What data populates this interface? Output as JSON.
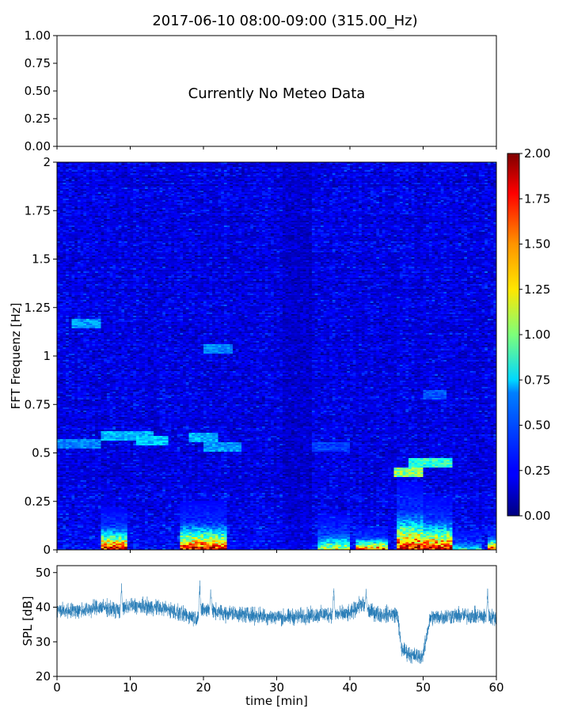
{
  "figure": {
    "title": "2017-06-10 08:00-09:00 (315.00_Hz)"
  },
  "chart_data": [
    {
      "type": "line",
      "panel": "meteo",
      "message": "Currently No Meteo Data",
      "ylim": [
        0,
        1
      ],
      "yticks": [
        "0.00",
        "0.25",
        "0.50",
        "0.75",
        "1.00"
      ],
      "xlim": [
        0,
        60
      ],
      "series": []
    },
    {
      "type": "heatmap",
      "panel": "spectrogram",
      "ylabel": "FFT Frequenz [Hz]",
      "ylim": [
        0,
        2
      ],
      "yticks": [
        0,
        0.25,
        0.5,
        0.75,
        1,
        1.25,
        1.5,
        1.75,
        2
      ],
      "ytick_labels": [
        "0",
        "0.25",
        "0.5",
        "0.75",
        "1",
        "1.25",
        "1.5",
        "1.75",
        "2"
      ],
      "xlim": [
        0,
        60
      ],
      "colormap": "jet",
      "colorbar": {
        "range": [
          0,
          2
        ],
        "ticks": [
          "0.00",
          "0.25",
          "0.50",
          "0.75",
          "1.00",
          "1.25",
          "1.50",
          "1.75",
          "2.00"
        ]
      },
      "features": [
        {
          "t_start": 0,
          "t_end": 6,
          "freq": 0.55,
          "amplitude": 0.55
        },
        {
          "t_start": 6,
          "t_end": 13,
          "freq": 0.59,
          "amplitude": 0.65
        },
        {
          "t_start": 11,
          "t_end": 15,
          "freq": 0.56,
          "amplitude": 0.7
        },
        {
          "t_start": 18,
          "t_end": 22,
          "freq": 0.58,
          "amplitude": 0.65
        },
        {
          "t_start": 20,
          "t_end": 25,
          "freq": 0.53,
          "amplitude": 0.6
        },
        {
          "t_start": 2,
          "t_end": 6,
          "freq": 1.17,
          "amplitude": 0.6
        },
        {
          "t_start": 20,
          "t_end": 24,
          "freq": 1.04,
          "amplitude": 0.55
        },
        {
          "t_start": 46,
          "t_end": 50,
          "freq": 0.4,
          "amplitude": 1.1
        },
        {
          "t_start": 48,
          "t_end": 54,
          "freq": 0.45,
          "amplitude": 0.9
        },
        {
          "t_start": 50,
          "t_end": 53,
          "freq": 0.8,
          "amplitude": 0.45
        },
        {
          "t_start": 35,
          "t_end": 40,
          "freq": 0.53,
          "amplitude": 0.4
        }
      ],
      "bursts": [
        {
          "t_start": 6.2,
          "t_end": 9.4,
          "peak": 2.0,
          "height": 0.22
        },
        {
          "t_start": 16.8,
          "t_end": 23.3,
          "peak": 2.0,
          "height": 0.25
        },
        {
          "t_start": 35.5,
          "t_end": 40.0,
          "peak": 1.3,
          "height": 0.18
        },
        {
          "t_start": 41.0,
          "t_end": 45.0,
          "peak": 1.8,
          "height": 0.12
        },
        {
          "t_start": 46.3,
          "t_end": 50.0,
          "peak": 2.0,
          "height": 0.35
        },
        {
          "t_start": 50.0,
          "t_end": 54.0,
          "peak": 2.0,
          "height": 0.28
        },
        {
          "t_start": 54.0,
          "t_end": 58.0,
          "peak": 0.9,
          "height": 0.1
        },
        {
          "t_start": 59.0,
          "t_end": 60.0,
          "peak": 2.0,
          "height": 0.12
        }
      ]
    },
    {
      "type": "line",
      "panel": "spl",
      "xlabel": "time [min]",
      "ylabel": "SPL [dB]",
      "xlim": [
        0,
        60
      ],
      "ylim": [
        20,
        52
      ],
      "xticks": [
        0,
        10,
        20,
        30,
        40,
        50,
        60
      ],
      "yticks": [
        20,
        30,
        40,
        50
      ],
      "color": "#1f77b4",
      "profile": [
        [
          0,
          39
        ],
        [
          3,
          39
        ],
        [
          6,
          40
        ],
        [
          8.7,
          39
        ],
        [
          10,
          40.5
        ],
        [
          13,
          40
        ],
        [
          15,
          39.5
        ],
        [
          17,
          38
        ],
        [
          19,
          37
        ],
        [
          20,
          39.5
        ],
        [
          22,
          38.5
        ],
        [
          25,
          38
        ],
        [
          28,
          37.5
        ],
        [
          31,
          37
        ],
        [
          34,
          37.5
        ],
        [
          37,
          38
        ],
        [
          40,
          38
        ],
        [
          41.5,
          41
        ],
        [
          42.5,
          39
        ],
        [
          44,
          38
        ],
        [
          46.5,
          38
        ],
        [
          47,
          28
        ],
        [
          48.5,
          26
        ],
        [
          50,
          26
        ],
        [
          50.5,
          32
        ],
        [
          51,
          37
        ],
        [
          54,
          37.5
        ],
        [
          57,
          37.5
        ],
        [
          60,
          37
        ]
      ],
      "spikes": [
        [
          8.8,
          48
        ],
        [
          19.5,
          48
        ],
        [
          21,
          46.5
        ],
        [
          37.8,
          47
        ],
        [
          42.2,
          45.5
        ],
        [
          58.8,
          46.5
        ]
      ],
      "noise_band": 2.6
    }
  ]
}
